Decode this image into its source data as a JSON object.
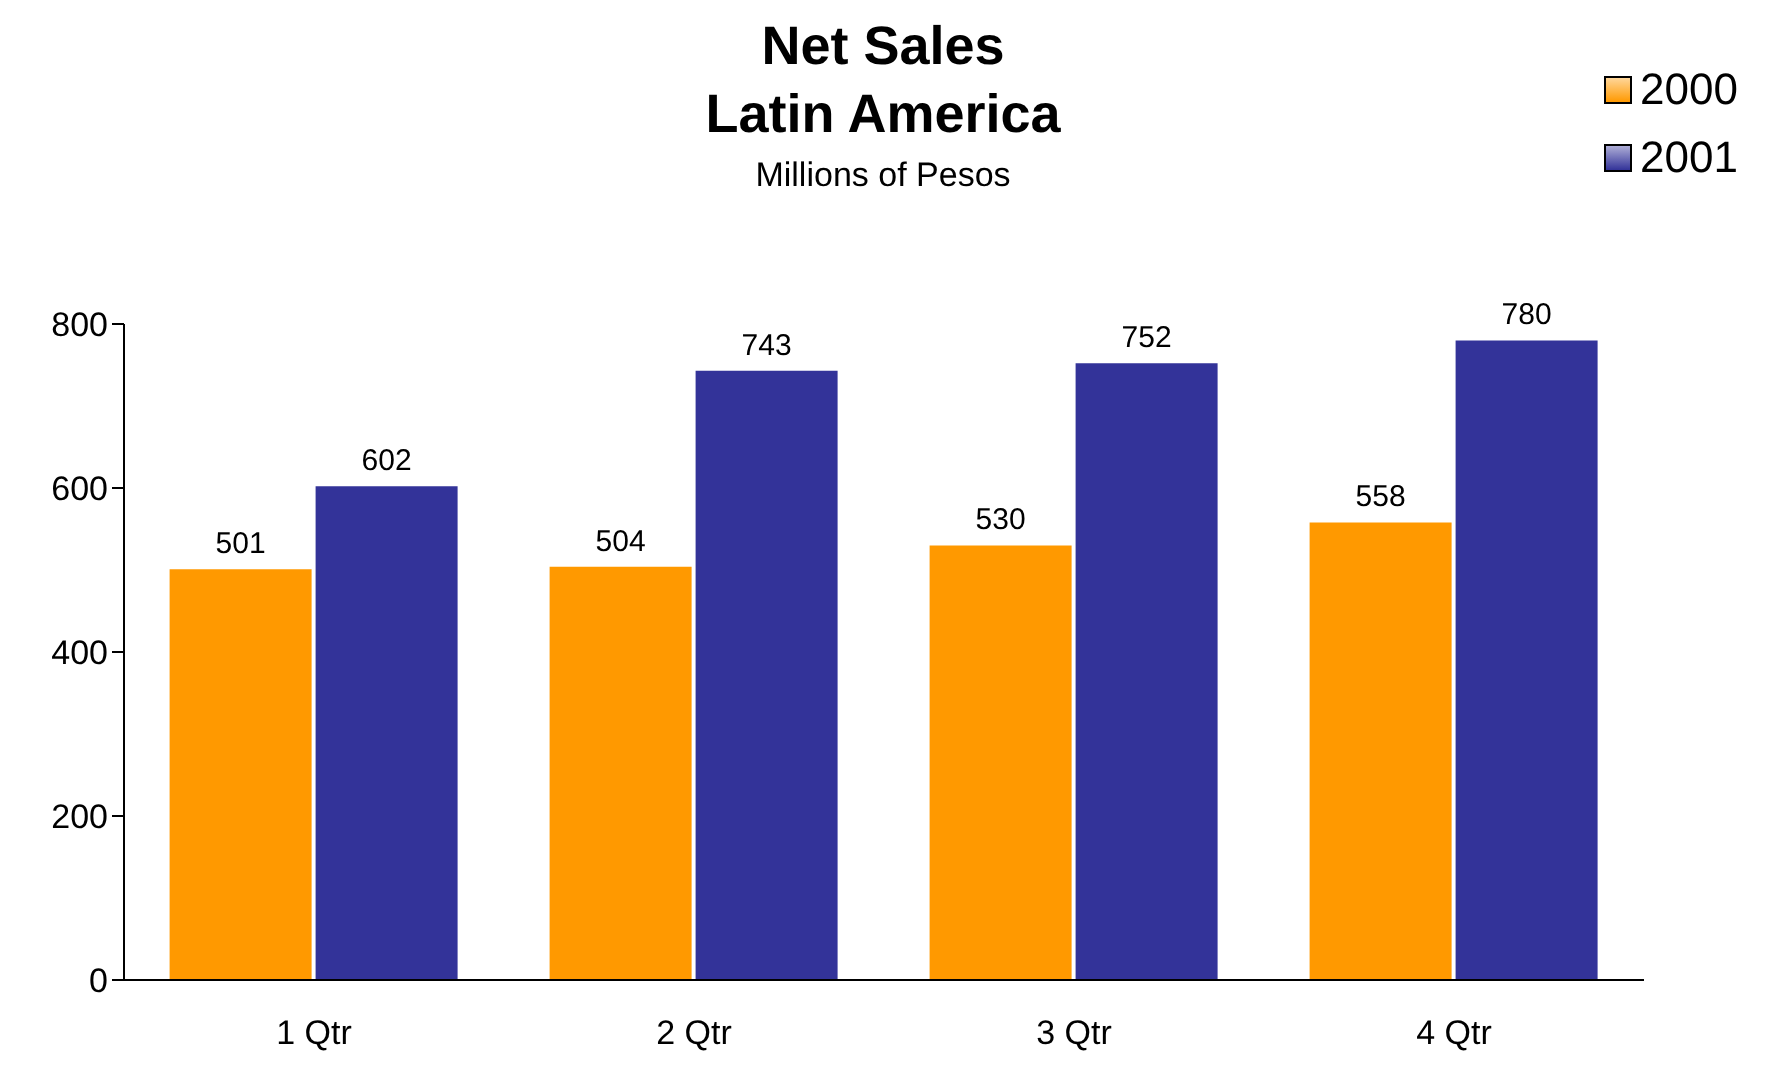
{
  "chart_data": {
    "type": "bar",
    "title": "Net Sales\nLatin America",
    "subtitle": "Millions of Pesos",
    "categories": [
      "1 Qtr",
      "2 Qtr",
      "3 Qtr",
      "4 Qtr"
    ],
    "series": [
      {
        "name": "2000",
        "color": "#ff9900",
        "values": [
          501,
          504,
          530,
          558
        ]
      },
      {
        "name": "2001",
        "color": "#333399",
        "values": [
          602,
          743,
          752,
          780
        ]
      }
    ],
    "ylim": [
      0,
      800
    ],
    "yticks": [
      0,
      200,
      400,
      600,
      800
    ],
    "grid": false,
    "legend": "top right",
    "data_labels": true
  }
}
